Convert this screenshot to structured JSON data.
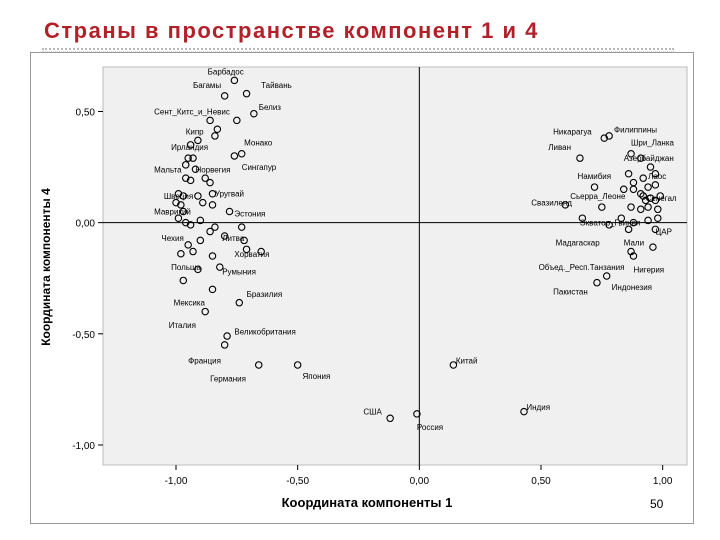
{
  "slide": {
    "title": "Страны в пространстве компонент 1 и 4",
    "page_number": "50"
  },
  "chart_data": {
    "type": "scatter",
    "title": "Страны в пространстве компонент 1 и 4",
    "xlabel": "Координата компоненты 1",
    "ylabel": "Координата компоненты 4",
    "xlim": [
      -1.3,
      1.1
    ],
    "ylim": [
      -1.09,
      0.7
    ],
    "x_ticks": [
      -1.0,
      -0.5,
      0.0,
      0.5,
      1.0
    ],
    "x_tick_labels": [
      "-1,00",
      "-0,50",
      "0,00",
      "0,50",
      "1,00"
    ],
    "y_ticks": [
      0.5,
      0.0,
      -0.5,
      -1.0
    ],
    "y_tick_labels": [
      "0,50",
      "0,00",
      "-0,50",
      "-1,00"
    ],
    "reference_lines": {
      "x": 0.0,
      "y": 0.0
    },
    "grid": false,
    "legend": false,
    "points": [
      {
        "x": -0.76,
        "y": 0.64
      },
      {
        "x": -0.71,
        "y": 0.58
      },
      {
        "x": -0.8,
        "y": 0.57
      },
      {
        "x": -0.68,
        "y": 0.49
      },
      {
        "x": -0.75,
        "y": 0.46
      },
      {
        "x": -0.86,
        "y": 0.46
      },
      {
        "x": -0.83,
        "y": 0.42
      },
      {
        "x": -0.84,
        "y": 0.39
      },
      {
        "x": -0.91,
        "y": 0.37
      },
      {
        "x": -0.94,
        "y": 0.35
      },
      {
        "x": -0.73,
        "y": 0.31
      },
      {
        "x": -0.76,
        "y": 0.3
      },
      {
        "x": -0.95,
        "y": 0.29
      },
      {
        "x": -0.93,
        "y": 0.29
      },
      {
        "x": -0.96,
        "y": 0.26
      },
      {
        "x": -0.92,
        "y": 0.24
      },
      {
        "x": -0.96,
        "y": 0.2
      },
      {
        "x": -0.94,
        "y": 0.19
      },
      {
        "x": -0.88,
        "y": 0.2
      },
      {
        "x": -0.86,
        "y": 0.18
      },
      {
        "x": -0.99,
        "y": 0.13
      },
      {
        "x": -0.97,
        "y": 0.12
      },
      {
        "x": -0.91,
        "y": 0.12
      },
      {
        "x": -0.85,
        "y": 0.13
      },
      {
        "x": -1.0,
        "y": 0.09
      },
      {
        "x": -0.98,
        "y": 0.08
      },
      {
        "x": -0.89,
        "y": 0.09
      },
      {
        "x": -0.85,
        "y": 0.08
      },
      {
        "x": -0.78,
        "y": 0.05
      },
      {
        "x": -0.97,
        "y": 0.05
      },
      {
        "x": -0.99,
        "y": 0.02
      },
      {
        "x": -0.96,
        "y": 0.0
      },
      {
        "x": -0.94,
        "y": -0.01
      },
      {
        "x": -0.9,
        "y": 0.01
      },
      {
        "x": -0.84,
        "y": -0.02
      },
      {
        "x": -0.73,
        "y": -0.02
      },
      {
        "x": -0.86,
        "y": -0.04
      },
      {
        "x": -0.8,
        "y": -0.06
      },
      {
        "x": -0.9,
        "y": -0.08
      },
      {
        "x": -0.72,
        "y": -0.08
      },
      {
        "x": -0.95,
        "y": -0.1
      },
      {
        "x": -0.85,
        "y": -0.15
      },
      {
        "x": -0.71,
        "y": -0.12
      },
      {
        "x": -0.65,
        "y": -0.13
      },
      {
        "x": -0.93,
        "y": -0.13
      },
      {
        "x": -0.98,
        "y": -0.14
      },
      {
        "x": -0.91,
        "y": -0.21
      },
      {
        "x": -0.82,
        "y": -0.2
      },
      {
        "x": -0.97,
        "y": -0.26
      },
      {
        "x": -0.85,
        "y": -0.3
      },
      {
        "x": -0.74,
        "y": -0.36
      },
      {
        "x": -0.88,
        "y": -0.4
      },
      {
        "x": -0.79,
        "y": -0.51
      },
      {
        "x": -0.8,
        "y": -0.55
      },
      {
        "x": -0.66,
        "y": -0.64
      },
      {
        "x": -0.5,
        "y": -0.64
      },
      {
        "x": -0.12,
        "y": -0.88
      },
      {
        "x": -0.01,
        "y": -0.86
      },
      {
        "x": 0.14,
        "y": -0.64
      },
      {
        "x": 0.43,
        "y": -0.85
      },
      {
        "x": 0.76,
        "y": 0.38
      },
      {
        "x": 0.78,
        "y": 0.39
      },
      {
        "x": 0.66,
        "y": 0.29
      },
      {
        "x": 0.87,
        "y": 0.31
      },
      {
        "x": 0.91,
        "y": 0.29
      },
      {
        "x": 0.95,
        "y": 0.25
      },
      {
        "x": 0.97,
        "y": 0.22
      },
      {
        "x": 0.86,
        "y": 0.22
      },
      {
        "x": 0.92,
        "y": 0.2
      },
      {
        "x": 0.88,
        "y": 0.18
      },
      {
        "x": 0.94,
        "y": 0.16
      },
      {
        "x": 0.97,
        "y": 0.17
      },
      {
        "x": 0.72,
        "y": 0.16
      },
      {
        "x": 0.84,
        "y": 0.15
      },
      {
        "x": 0.88,
        "y": 0.15
      },
      {
        "x": 0.91,
        "y": 0.13
      },
      {
        "x": 0.92,
        "y": 0.12
      },
      {
        "x": 0.95,
        "y": 0.11
      },
      {
        "x": 0.93,
        "y": 0.1
      },
      {
        "x": 0.97,
        "y": 0.1
      },
      {
        "x": 0.99,
        "y": 0.12
      },
      {
        "x": 0.6,
        "y": 0.08
      },
      {
        "x": 0.75,
        "y": 0.07
      },
      {
        "x": 0.87,
        "y": 0.07
      },
      {
        "x": 0.91,
        "y": 0.06
      },
      {
        "x": 0.94,
        "y": 0.07
      },
      {
        "x": 0.98,
        "y": 0.06
      },
      {
        "x": 0.67,
        "y": 0.02
      },
      {
        "x": 0.83,
        "y": 0.02
      },
      {
        "x": 0.88,
        "y": 0.0
      },
      {
        "x": 0.94,
        "y": 0.01
      },
      {
        "x": 0.98,
        "y": 0.02
      },
      {
        "x": 0.78,
        "y": -0.01
      },
      {
        "x": 0.86,
        "y": -0.03
      },
      {
        "x": 0.97,
        "y": -0.03
      },
      {
        "x": 0.87,
        "y": -0.13
      },
      {
        "x": 0.88,
        "y": -0.15
      },
      {
        "x": 0.96,
        "y": -0.11
      },
      {
        "x": 0.77,
        "y": -0.24
      },
      {
        "x": 0.73,
        "y": -0.27
      }
    ],
    "annotations": [
      {
        "text": "Барбадос",
        "x": -0.87,
        "y": 0.68
      },
      {
        "text": "Багамы",
        "x": -0.93,
        "y": 0.62
      },
      {
        "text": "Тайвань",
        "x": -0.65,
        "y": 0.62
      },
      {
        "text": "Белиз",
        "x": -0.66,
        "y": 0.52
      },
      {
        "text": "Сент_Китс_и_Невис",
        "x": -1.09,
        "y": 0.5
      },
      {
        "text": "Кипр",
        "x": -0.96,
        "y": 0.41
      },
      {
        "text": "Монако",
        "x": -0.72,
        "y": 0.36
      },
      {
        "text": "Ирландия",
        "x": -1.02,
        "y": 0.34
      },
      {
        "text": "Мальта",
        "x": -1.09,
        "y": 0.24
      },
      {
        "text": "Норвегия",
        "x": -0.92,
        "y": 0.24
      },
      {
        "text": "Сингапур",
        "x": -0.73,
        "y": 0.25
      },
      {
        "text": "Швеция",
        "x": -1.05,
        "y": 0.12
      },
      {
        "text": "Уругвай",
        "x": -0.84,
        "y": 0.13
      },
      {
        "text": "Маврикий",
        "x": -1.09,
        "y": 0.05
      },
      {
        "text": "Эстония",
        "x": -0.76,
        "y": 0.04
      },
      {
        "text": "Чехия",
        "x": -1.06,
        "y": -0.07
      },
      {
        "text": "Литва",
        "x": -0.81,
        "y": -0.07
      },
      {
        "text": "Хорватия",
        "x": -0.76,
        "y": -0.14
      },
      {
        "text": "Польша",
        "x": -1.02,
        "y": -0.2
      },
      {
        "text": "Румыния",
        "x": -0.81,
        "y": -0.22
      },
      {
        "text": "Бразилия",
        "x": -0.71,
        "y": -0.32
      },
      {
        "text": "Мексика",
        "x": -1.01,
        "y": -0.36
      },
      {
        "text": "Италия",
        "x": -1.03,
        "y": -0.46
      },
      {
        "text": "Великобритания",
        "x": -0.76,
        "y": -0.49
      },
      {
        "text": "Франция",
        "x": -0.95,
        "y": -0.62
      },
      {
        "text": "Германия",
        "x": -0.86,
        "y": -0.7
      },
      {
        "text": "Япония",
        "x": -0.48,
        "y": -0.69
      },
      {
        "text": "США",
        "x": -0.23,
        "y": -0.85
      },
      {
        "text": "Россия",
        "x": -0.01,
        "y": -0.92
      },
      {
        "text": "Китай",
        "x": 0.15,
        "y": -0.62
      },
      {
        "text": "Индия",
        "x": 0.44,
        "y": -0.83
      },
      {
        "text": "Никарагуа",
        "x": 0.55,
        "y": 0.41
      },
      {
        "text": "Филиппины",
        "x": 0.8,
        "y": 0.42
      },
      {
        "text": "Шри_Ланка",
        "x": 0.87,
        "y": 0.36
      },
      {
        "text": "Ливан",
        "x": 0.53,
        "y": 0.34
      },
      {
        "text": "Азербайджан",
        "x": 0.84,
        "y": 0.29
      },
      {
        "text": "Намибия",
        "x": 0.65,
        "y": 0.21
      },
      {
        "text": "Лаос",
        "x": 0.94,
        "y": 0.21
      },
      {
        "text": "Сьерра_Леоне",
        "x": 0.62,
        "y": 0.12
      },
      {
        "text": "Сенегал",
        "x": 0.93,
        "y": 0.11
      },
      {
        "text": "Свазиленд",
        "x": 0.46,
        "y": 0.09
      },
      {
        "text": "Экватор_Гвинея",
        "x": 0.66,
        "y": 0.0
      },
      {
        "text": "ЦАР",
        "x": 0.97,
        "y": -0.04
      },
      {
        "text": "Мадагаскар",
        "x": 0.56,
        "y": -0.09
      },
      {
        "text": "Мали",
        "x": 0.84,
        "y": -0.09
      },
      {
        "text": "Объед._Респ.Танзания",
        "x": 0.49,
        "y": -0.2
      },
      {
        "text": "Нигерия",
        "x": 0.88,
        "y": -0.21
      },
      {
        "text": "Индонезия",
        "x": 0.79,
        "y": -0.29
      },
      {
        "text": "Пакистан",
        "x": 0.55,
        "y": -0.31
      }
    ]
  }
}
